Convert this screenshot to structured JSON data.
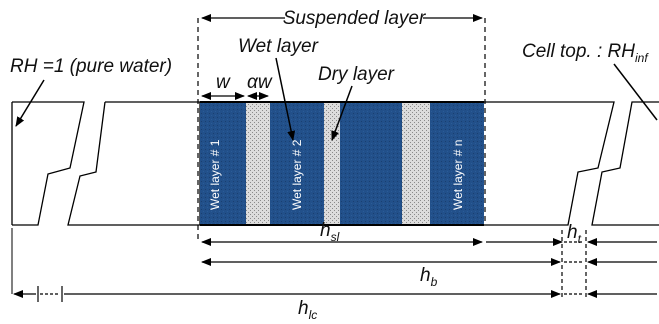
{
  "colors": {
    "wet_layer": "#22508a",
    "dry_layer": "#d6d6d6",
    "line": "#000000",
    "wet_text": "#ffffff"
  },
  "labels": {
    "suspended_layer": "Suspended layer",
    "wet_layer": "Wet layer",
    "dry_layer": "Dry layer",
    "rh_left": "RH =1 (pure water)",
    "cell_top_main": "Cell top. : RH",
    "cell_top_sub": "inf",
    "w": "w",
    "alpha_w": "αw",
    "wet_layer_1": "Wet layer # 1",
    "wet_layer_2": "Wet layer # 2",
    "wet_layer_n": "Wet layer # n"
  },
  "dimensions": {
    "h_sl": {
      "main": "h",
      "sub": "sl"
    },
    "h_t": {
      "main": "h",
      "sub": "t"
    },
    "h_b": {
      "main": "h",
      "sub": "b"
    },
    "h_lc": {
      "main": "h",
      "sub": "lc"
    }
  }
}
